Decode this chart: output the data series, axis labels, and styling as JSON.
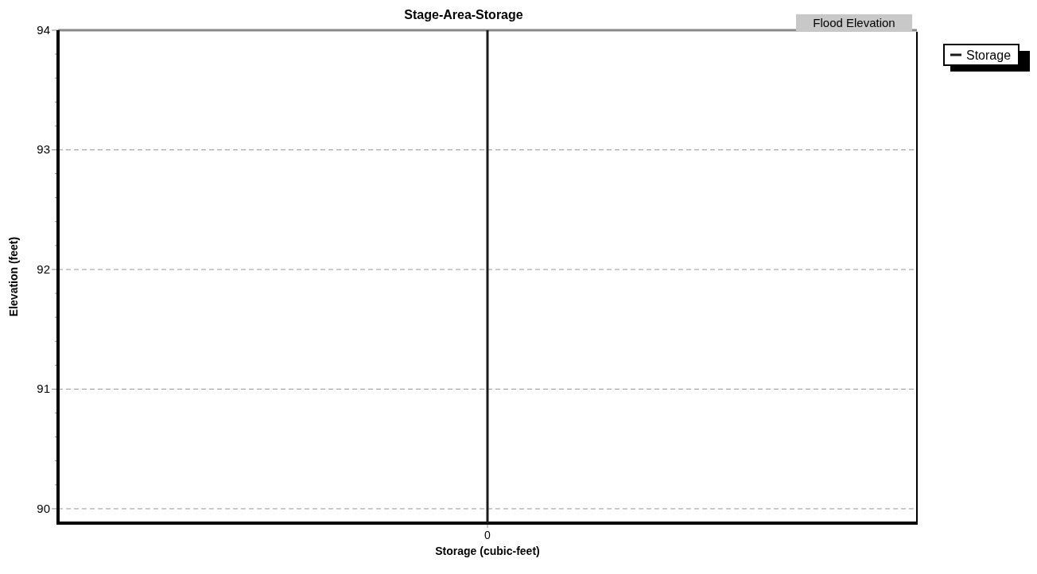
{
  "chart_data": {
    "type": "line",
    "title": "Stage-Area-Storage",
    "xlabel": "Storage (cubic-feet)",
    "ylabel": "Elevation  (feet)",
    "categories": [
      "0"
    ],
    "ylim": [
      89.88,
      94
    ],
    "yticks": [
      {
        "value": 90,
        "label": "90"
      },
      {
        "value": 90.2,
        "label": null
      },
      {
        "value": 90.4,
        "label": null
      },
      {
        "value": 90.6,
        "label": null
      },
      {
        "value": 90.8,
        "label": null
      },
      {
        "value": 91,
        "label": "91"
      },
      {
        "value": 91.2,
        "label": null
      },
      {
        "value": 91.4,
        "label": null
      },
      {
        "value": 91.6,
        "label": null
      },
      {
        "value": 91.8,
        "label": null
      },
      {
        "value": 92,
        "label": "92"
      },
      {
        "value": 92.2,
        "label": null
      },
      {
        "value": 92.4,
        "label": null
      },
      {
        "value": 92.6,
        "label": null
      },
      {
        "value": 92.8,
        "label": null
      },
      {
        "value": 93,
        "label": "93"
      },
      {
        "value": 93.2,
        "label": null
      },
      {
        "value": 93.4,
        "label": null
      },
      {
        "value": 93.6,
        "label": null
      },
      {
        "value": 93.8,
        "label": null
      },
      {
        "value": 94,
        "label": "94"
      }
    ],
    "series": [
      {
        "name": "Storage",
        "color": "#1a1a1a",
        "x": [
          "0",
          "0"
        ],
        "values": [
          89.88,
          94
        ]
      }
    ],
    "ref_lines": [
      {
        "axis": "y",
        "value": 94,
        "label": "Flood Elevation",
        "color": "#888888"
      }
    ],
    "grid": "y",
    "legend": "top right",
    "line_style": "solid",
    "marker": "none"
  }
}
